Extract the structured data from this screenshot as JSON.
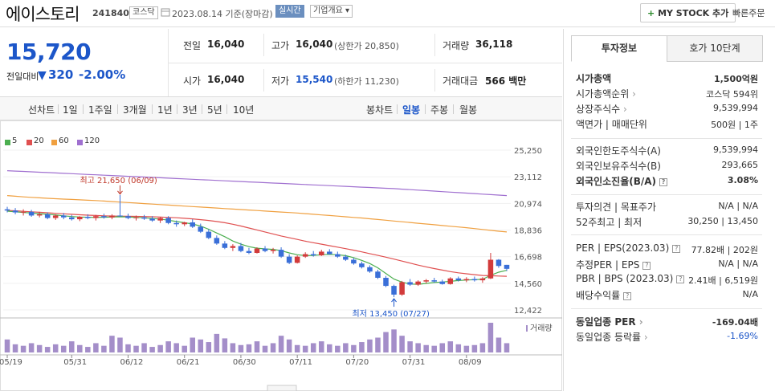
{
  "header": {
    "stock_name": "에이스토리",
    "stock_code": "241840",
    "market": "코스닥",
    "date_text": "2023.08.14 기준(장마감)",
    "realtime_label": "실시간",
    "overview_label": "기업개요",
    "mystock_label": "MY STOCK 추가",
    "quick_order_label": "빠른주문"
  },
  "price": {
    "current": "15,720",
    "change_label": "전일대비",
    "change_amount": "320",
    "change_pct": "-2.00%",
    "color": "#1c56c9"
  },
  "quote": {
    "prev_close_label": "전일",
    "prev_close": "16,040",
    "high_label": "고가",
    "high": "16,040",
    "upper_limit": "(상한가 20,850)",
    "volume_label": "거래량",
    "volume": "36,118",
    "open_label": "시가",
    "open": "16,040",
    "low_label": "저가",
    "low": "15,540",
    "lower_limit": "(하한가 11,230)",
    "amount_label": "거래대금",
    "amount": "566 백만"
  },
  "period_bar": {
    "line_chart": "선차트",
    "periods": [
      "1일",
      "1주일",
      "3개월",
      "1년",
      "3년",
      "5년",
      "10년"
    ],
    "candle_chart": "봉차트",
    "candle_periods": [
      "일봉",
      "주봉",
      "월봉"
    ],
    "active_candle": "일봉"
  },
  "legend": [
    {
      "label": "5",
      "color": "#4caf50"
    },
    {
      "label": "20",
      "color": "#e05050"
    },
    {
      "label": "60",
      "color": "#f0a040"
    },
    {
      "label": "120",
      "color": "#a070d0"
    }
  ],
  "chart_data": {
    "type": "candlestick",
    "y_ticks": [
      "25,250",
      "23,112",
      "20,974",
      "18,836",
      "16,698",
      "14,560",
      "12,422"
    ],
    "ylim": [
      12422,
      25250
    ],
    "x_ticks": [
      "05/19",
      "05/31",
      "06/12",
      "06/21",
      "06/30",
      "07/11",
      "07/20",
      "07/31",
      "08/09"
    ],
    "high_annotation": "최고 21,650 (06/09)",
    "low_annotation": "최저 13,450 (07/27)",
    "volume_label": "거래량",
    "colors": {
      "up": "#d23b3b",
      "down": "#3a6fd8",
      "volume": "#a48ec9"
    },
    "candles": [
      [
        20500,
        20700,
        20250,
        20400
      ],
      [
        20400,
        20600,
        20100,
        20250
      ],
      [
        20250,
        20500,
        20000,
        20300
      ],
      [
        20300,
        20450,
        19900,
        20000
      ],
      [
        20000,
        20300,
        19850,
        20100
      ],
      [
        20100,
        20250,
        19700,
        19800
      ],
      [
        19800,
        20100,
        19650,
        20000
      ],
      [
        20000,
        20200,
        19700,
        19850
      ],
      [
        19850,
        20050,
        19600,
        19700
      ],
      [
        19700,
        19950,
        19550,
        19900
      ],
      [
        19900,
        20100,
        19700,
        19800
      ],
      [
        19800,
        20050,
        19600,
        19950
      ],
      [
        19950,
        20150,
        19750,
        19850
      ],
      [
        19850,
        20100,
        19700,
        20000
      ],
      [
        20000,
        21650,
        19900,
        19950
      ],
      [
        19950,
        20150,
        19700,
        19800
      ],
      [
        19800,
        20000,
        19600,
        19850
      ],
      [
        19850,
        20050,
        19650,
        19750
      ],
      [
        19750,
        19950,
        19500,
        19600
      ],
      [
        19600,
        19900,
        19400,
        19800
      ],
      [
        19800,
        19950,
        19300,
        19400
      ],
      [
        19400,
        19600,
        19100,
        19300
      ],
      [
        19300,
        19500,
        19150,
        19450
      ],
      [
        19450,
        19700,
        19000,
        19100
      ],
      [
        19100,
        19350,
        18600,
        18700
      ],
      [
        18700,
        18900,
        18100,
        18200
      ],
      [
        18200,
        18400,
        17650,
        17750
      ],
      [
        17750,
        17950,
        17300,
        17400
      ],
      [
        17400,
        17700,
        17150,
        17550
      ],
      [
        17550,
        17800,
        17050,
        17150
      ],
      [
        17150,
        17400,
        16900,
        17000
      ],
      [
        17000,
        17450,
        16950,
        17350
      ],
      [
        17350,
        17550,
        17050,
        17150
      ],
      [
        17150,
        17400,
        16950,
        17250
      ],
      [
        17250,
        17450,
        16600,
        16700
      ],
      [
        16700,
        16900,
        16100,
        16200
      ],
      [
        16200,
        16800,
        16150,
        16700
      ],
      [
        16700,
        17050,
        16600,
        16900
      ],
      [
        16900,
        17150,
        16700,
        16800
      ],
      [
        16800,
        17250,
        16750,
        17100
      ],
      [
        17100,
        17300,
        16850,
        16900
      ],
      [
        16900,
        17100,
        16600,
        16700
      ],
      [
        16700,
        16850,
        16350,
        16450
      ],
      [
        16450,
        16600,
        16050,
        16150
      ],
      [
        16150,
        16300,
        15750,
        15850
      ],
      [
        15850,
        16000,
        15400,
        15500
      ],
      [
        15500,
        15650,
        14900,
        15000
      ],
      [
        15000,
        15150,
        14250,
        14350
      ],
      [
        14350,
        14450,
        13450,
        13650
      ],
      [
        13650,
        14750,
        13550,
        14650
      ],
      [
        14650,
        14900,
        14350,
        14450
      ],
      [
        14450,
        14800,
        14350,
        14700
      ],
      [
        14700,
        14900,
        14550,
        14800
      ],
      [
        14800,
        15000,
        14600,
        14700
      ],
      [
        14700,
        14850,
        14450,
        14500
      ],
      [
        14500,
        15050,
        14450,
        14950
      ],
      [
        14950,
        15100,
        14700,
        14800
      ],
      [
        14800,
        15050,
        14650,
        14900
      ],
      [
        14900,
        15100,
        14700,
        14800
      ],
      [
        14800,
        15050,
        14600,
        14950
      ],
      [
        14950,
        17000,
        14900,
        16450
      ],
      [
        16450,
        16500,
        15800,
        15950
      ],
      [
        16040,
        16040,
        15540,
        15720
      ]
    ],
    "ma": {
      "5": [
        20350,
        20300,
        20250,
        20200,
        20150,
        20100,
        20050,
        19980,
        19920,
        19880,
        19860,
        19850,
        19860,
        19880,
        19900,
        19880,
        19850,
        19820,
        19760,
        19720,
        19620,
        19520,
        19420,
        19320,
        19150,
        18900,
        18600,
        18300,
        17950,
        17700,
        17500,
        17380,
        17320,
        17280,
        17180,
        17000,
        16850,
        16780,
        16800,
        16850,
        16880,
        16850,
        16780,
        16620,
        16400,
        16150,
        15800,
        15350,
        14900,
        14650,
        14500,
        14480,
        14550,
        14620,
        14660,
        14720,
        14780,
        14820,
        14850,
        14880,
        15200,
        15450,
        15600
      ],
      "20": [
        20400,
        20380,
        20340,
        20300,
        20260,
        20220,
        20180,
        20140,
        20100,
        20060,
        20030,
        20000,
        19980,
        19960,
        19950,
        19940,
        19930,
        19920,
        19900,
        19880,
        19850,
        19820,
        19780,
        19730,
        19670,
        19600,
        19520,
        19420,
        19300,
        19160,
        19000,
        18840,
        18680,
        18520,
        18360,
        18220,
        18080,
        17940,
        17820,
        17700,
        17580,
        17460,
        17340,
        17220,
        17080,
        16940,
        16800,
        16660,
        16500,
        16340,
        16180,
        16020,
        15880,
        15740,
        15620,
        15500,
        15400,
        15320,
        15250,
        15190,
        15170,
        15140,
        15120
      ],
      "60": [
        21600,
        21550,
        21500,
        21460,
        21420,
        21380,
        21350,
        21320,
        21290,
        21260,
        21230,
        21200,
        21160,
        21120,
        21080,
        21040,
        21000,
        20960,
        20920,
        20880,
        20840,
        20800,
        20760,
        20720,
        20680,
        20640,
        20600,
        20560,
        20520,
        20480,
        20440,
        20400,
        20360,
        20320,
        20280,
        20240,
        20200,
        20150,
        20100,
        20050,
        20000,
        19950,
        19900,
        19850,
        19800,
        19740,
        19680,
        19620,
        19560,
        19500,
        19440,
        19380,
        19320,
        19260,
        19200,
        19140,
        19080,
        19020,
        18950,
        18880,
        18810,
        18740,
        18680
      ],
      "120": [
        23600,
        23570,
        23540,
        23510,
        23480,
        23450,
        23420,
        23390,
        23360,
        23330,
        23300,
        23270,
        23240,
        23210,
        23180,
        23150,
        23120,
        23090,
        23060,
        23030,
        23000,
        22970,
        22940,
        22910,
        22880,
        22850,
        22820,
        22790,
        22760,
        22730,
        22700,
        22670,
        22640,
        22610,
        22580,
        22550,
        22520,
        22490,
        22460,
        22430,
        22400,
        22370,
        22340,
        22310,
        22280,
        22250,
        22220,
        22190,
        22160,
        22120,
        22080,
        22040,
        22000,
        21960,
        21920,
        21880,
        21840,
        21800,
        21760,
        21720,
        21680,
        21640,
        21600
      ]
    },
    "volume": [
      35,
      22,
      18,
      25,
      20,
      15,
      22,
      18,
      30,
      20,
      15,
      25,
      18,
      45,
      40,
      22,
      18,
      25,
      15,
      20,
      30,
      25,
      18,
      40,
      35,
      28,
      50,
      38,
      25,
      20,
      22,
      30,
      18,
      25,
      45,
      35,
      20,
      18,
      25,
      30,
      22,
      18,
      25,
      20,
      28,
      35,
      40,
      55,
      62,
      45,
      30,
      25,
      20,
      18,
      25,
      30,
      22,
      18,
      20,
      25,
      80,
      40,
      25
    ]
  },
  "right_panel": {
    "tabs": [
      "투자정보",
      "호가 10단계"
    ],
    "rows1": [
      {
        "label": "시가총액",
        "value": "1,500억원",
        "bold": true
      },
      {
        "label": "시가총액순위",
        "value": "코스닥 594위"
      },
      {
        "label": "상장주식수",
        "value": "9,539,994"
      },
      {
        "label": "액면가 | 매매단위",
        "value": "500원 | 1주"
      }
    ],
    "rows2": [
      {
        "label": "외국인한도주식수(A)",
        "value": "9,539,994"
      },
      {
        "label": "외국인보유주식수(B)",
        "value": "293,665"
      },
      {
        "label": "외국인소진율(B/A)",
        "value": "3.08%",
        "bold": true
      }
    ],
    "rows3": [
      {
        "label": "투자의견 | 목표주가",
        "value": "N/A | N/A"
      },
      {
        "label": "52주최고 | 최저",
        "value": "30,250 | 13,450"
      }
    ],
    "rows4": [
      {
        "label": "PER | EPS(2023.03)",
        "value": "77.82배 | 202원"
      },
      {
        "label": "추정PER | EPS",
        "value": "N/A | N/A"
      },
      {
        "label": "PBR | BPS (2023.03)",
        "value": "2.41배 | 6,519원"
      },
      {
        "label": "배당수익률",
        "value": "N/A"
      }
    ],
    "rows5": [
      {
        "label": "동일업종 PER",
        "value": "-169.04배",
        "bold": true
      },
      {
        "label": "동일업종 등락률",
        "value": "-1.69%",
        "color": "#1c56c9"
      }
    ]
  }
}
